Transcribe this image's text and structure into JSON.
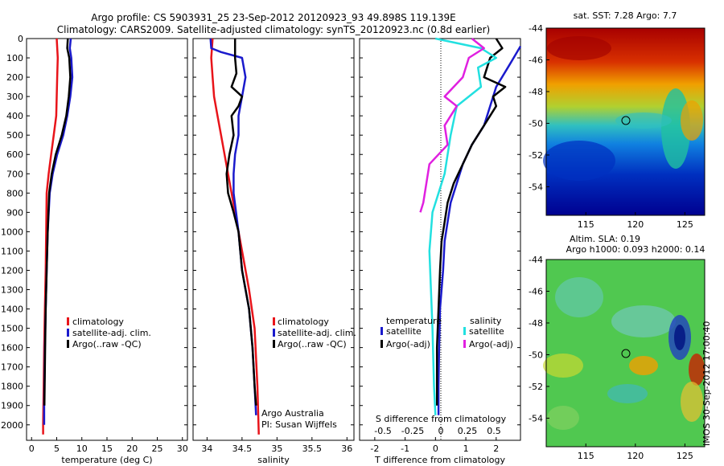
{
  "title_line1": "Argo profile: CS 5903931_25 23-Sep-2012 20120923_93 49.898S 119.139E",
  "title_line2": "Climatology: CARS2009. Satellite-adjusted climatology: synTS_20120923.nc (0.8d earlier)",
  "side_label": "IMOS 30-Sep-2012 17:00:40",
  "credits": [
    "Argo Australia",
    "PI: Susan Wijffels"
  ],
  "colors": {
    "red": "#e8141a",
    "blue": "#1a1acc",
    "black": "#000000",
    "cyan": "#22e0e0",
    "magenta": "#e020e0",
    "dot": "#666666"
  },
  "chart_data": [
    {
      "type": "line",
      "xlabel": "temperature (deg C)",
      "xlim": [
        -1,
        31
      ],
      "xticks": [
        0,
        5,
        10,
        15,
        20,
        25,
        30
      ],
      "ylim": [
        2080,
        0
      ],
      "yticks": [
        0,
        100,
        200,
        300,
        400,
        500,
        600,
        700,
        800,
        900,
        1000,
        1100,
        1200,
        1300,
        1400,
        1500,
        1600,
        1700,
        1800,
        1900,
        2000
      ],
      "legend": [
        "climatology",
        "satellite-adj. clim.",
        "Argo(..raw -QC)"
      ],
      "series": [
        {
          "color_key": "red",
          "points": [
            [
              5.0,
              0
            ],
            [
              5.2,
              100
            ],
            [
              5.1,
              200
            ],
            [
              5.0,
              300
            ],
            [
              4.9,
              400
            ],
            [
              4.4,
              500
            ],
            [
              3.9,
              600
            ],
            [
              3.4,
              700
            ],
            [
              3.0,
              800
            ],
            [
              2.9,
              1000
            ],
            [
              2.8,
              1200
            ],
            [
              2.65,
              1400
            ],
            [
              2.5,
              1600
            ],
            [
              2.4,
              1800
            ],
            [
              2.3,
              2000
            ],
            [
              2.3,
              2050
            ]
          ]
        },
        {
          "color_key": "blue",
          "points": [
            [
              7.8,
              0
            ],
            [
              7.6,
              50
            ],
            [
              7.9,
              100
            ],
            [
              8.1,
              200
            ],
            [
              7.7,
              300
            ],
            [
              7.1,
              400
            ],
            [
              6.3,
              500
            ],
            [
              5.1,
              600
            ],
            [
              4.2,
              700
            ],
            [
              3.6,
              800
            ],
            [
              3.2,
              1000
            ],
            [
              3.0,
              1200
            ],
            [
              2.8,
              1400
            ],
            [
              2.65,
              1600
            ],
            [
              2.55,
              1800
            ],
            [
              2.5,
              1900
            ],
            [
              2.5,
              2000
            ]
          ]
        },
        {
          "color_key": "black",
          "points": [
            [
              7.2,
              0
            ],
            [
              7.1,
              50
            ],
            [
              7.5,
              100
            ],
            [
              7.7,
              200
            ],
            [
              7.4,
              300
            ],
            [
              6.9,
              400
            ],
            [
              6.0,
              500
            ],
            [
              4.8,
              600
            ],
            [
              4.0,
              700
            ],
            [
              3.5,
              800
            ],
            [
              3.2,
              1000
            ],
            [
              3.0,
              1200
            ],
            [
              2.8,
              1400
            ],
            [
              2.7,
              1600
            ],
            [
              2.6,
              1800
            ],
            [
              2.55,
              1900
            ]
          ]
        }
      ]
    },
    {
      "type": "line",
      "xlabel": "salinity",
      "xlim": [
        33.8,
        36.1
      ],
      "xticks": [
        34,
        34.5,
        35,
        35.5,
        36
      ],
      "ylim": [
        2080,
        0
      ],
      "legend": [
        "climatology",
        "satellite-adj. clim.",
        "Argo(..raw -QC)"
      ],
      "series": [
        {
          "color_key": "red",
          "points": [
            [
              34.08,
              0
            ],
            [
              34.06,
              100
            ],
            [
              34.08,
              200
            ],
            [
              34.1,
              300
            ],
            [
              34.15,
              400
            ],
            [
              34.2,
              500
            ],
            [
              34.3,
              700
            ],
            [
              34.4,
              900
            ],
            [
              34.5,
              1100
            ],
            [
              34.6,
              1300
            ],
            [
              34.68,
              1500
            ],
            [
              34.72,
              1800
            ],
            [
              34.74,
              2050
            ]
          ]
        },
        {
          "color_key": "blue",
          "points": [
            [
              34.05,
              0
            ],
            [
              34.06,
              50
            ],
            [
              34.2,
              70
            ],
            [
              34.5,
              100
            ],
            [
              34.55,
              200
            ],
            [
              34.5,
              300
            ],
            [
              34.45,
              400
            ],
            [
              34.45,
              500
            ],
            [
              34.4,
              600
            ],
            [
              34.38,
              700
            ],
            [
              34.38,
              800
            ],
            [
              34.45,
              1000
            ],
            [
              34.5,
              1200
            ],
            [
              34.6,
              1400
            ],
            [
              34.65,
              1600
            ],
            [
              34.68,
              1800
            ],
            [
              34.7,
              1950
            ]
          ]
        },
        {
          "color_key": "black",
          "points": [
            [
              34.4,
              0
            ],
            [
              34.4,
              100
            ],
            [
              34.42,
              180
            ],
            [
              34.35,
              250
            ],
            [
              34.5,
              300
            ],
            [
              34.45,
              350
            ],
            [
              34.35,
              400
            ],
            [
              34.38,
              500
            ],
            [
              34.32,
              600
            ],
            [
              34.28,
              700
            ],
            [
              34.3,
              800
            ],
            [
              34.38,
              900
            ],
            [
              34.45,
              1000
            ],
            [
              34.5,
              1200
            ],
            [
              34.6,
              1400
            ],
            [
              34.65,
              1600
            ],
            [
              34.68,
              1800
            ],
            [
              34.7,
              1900
            ]
          ]
        }
      ]
    },
    {
      "type": "line",
      "xlabel": "T difference from climatology",
      "xlabel_top": "S difference from climatology",
      "xlim": [
        -2.5,
        2.8
      ],
      "xticks": [
        -2,
        -1,
        0,
        1,
        2
      ],
      "top_ticks": [
        "-0.5",
        "-0.25",
        "0",
        "0.25",
        "0.5"
      ],
      "ylim": [
        2080,
        0
      ],
      "legend_headers": [
        "temperature",
        "salinity"
      ],
      "legend": [
        "satellite",
        "Argo(-adj)",
        "satellite",
        "Argo(-adj)"
      ],
      "series": [
        {
          "color_key": "blue",
          "points": [
            [
              2.8,
              40
            ],
            [
              2.5,
              120
            ],
            [
              2.0,
              250
            ],
            [
              1.8,
              350
            ],
            [
              1.6,
              450
            ],
            [
              1.2,
              550
            ],
            [
              0.9,
              650
            ],
            [
              0.7,
              750
            ],
            [
              0.5,
              850
            ],
            [
              0.4,
              950
            ],
            [
              0.3,
              1050
            ],
            [
              0.25,
              1200
            ],
            [
              0.15,
              1400
            ],
            [
              0.12,
              1600
            ],
            [
              0.1,
              1800
            ],
            [
              0.1,
              1950
            ]
          ]
        },
        {
          "color_key": "black",
          "points": [
            [
              2.0,
              0
            ],
            [
              2.2,
              50
            ],
            [
              1.8,
              100
            ],
            [
              1.6,
              200
            ],
            [
              2.3,
              250
            ],
            [
              1.9,
              300
            ],
            [
              2.0,
              350
            ],
            [
              1.6,
              450
            ],
            [
              1.2,
              550
            ],
            [
              0.9,
              650
            ],
            [
              0.6,
              750
            ],
            [
              0.4,
              850
            ],
            [
              0.3,
              950
            ],
            [
              0.2,
              1050
            ],
            [
              0.15,
              1200
            ],
            [
              0.1,
              1400
            ],
            [
              0.05,
              1600
            ],
            [
              0.05,
              1900
            ]
          ]
        },
        {
          "color_key": "cyan",
          "points": [
            [
              0.0,
              0
            ],
            [
              1.5,
              50
            ],
            [
              2.0,
              100
            ],
            [
              1.4,
              150
            ],
            [
              1.5,
              250
            ],
            [
              0.7,
              350
            ],
            [
              0.5,
              500
            ],
            [
              0.3,
              700
            ],
            [
              -0.1,
              900
            ],
            [
              -0.2,
              1100
            ],
            [
              -0.15,
              1300
            ],
            [
              -0.1,
              1500
            ],
            [
              -0.05,
              1800
            ],
            [
              0.0,
              1950
            ]
          ]
        },
        {
          "color_key": "magenta",
          "points": [
            [
              1.2,
              0
            ],
            [
              1.6,
              50
            ],
            [
              1.1,
              100
            ],
            [
              0.9,
              200
            ],
            [
              0.3,
              300
            ],
            [
              0.7,
              350
            ],
            [
              0.3,
              450
            ],
            [
              0.4,
              550
            ],
            [
              -0.2,
              650
            ],
            [
              -0.3,
              750
            ],
            [
              -0.4,
              850
            ],
            [
              -0.5,
              900
            ]
          ]
        }
      ]
    },
    {
      "type": "heatmap",
      "title": "sat. SST: 7.28 Argo: 7.7",
      "xlim": [
        111,
        127
      ],
      "ylim": [
        -55.8,
        -44
      ],
      "xticks": [
        115,
        120,
        125
      ],
      "yticks": [
        -44,
        -46,
        -48,
        -50,
        -52,
        -54
      ],
      "marker": [
        119.1,
        -49.9
      ]
    },
    {
      "type": "heatmap",
      "title": [
        "Altim. SLA: 0.19",
        "Argo h1000: 0.093 h2000: 0.14"
      ],
      "xlim": [
        111,
        127
      ],
      "ylim": [
        -55.8,
        -44
      ],
      "xticks": [
        115,
        120,
        125
      ],
      "yticks": [
        -44,
        -46,
        -48,
        -50,
        -52,
        -54
      ],
      "marker": [
        119.1,
        -49.9
      ]
    }
  ]
}
